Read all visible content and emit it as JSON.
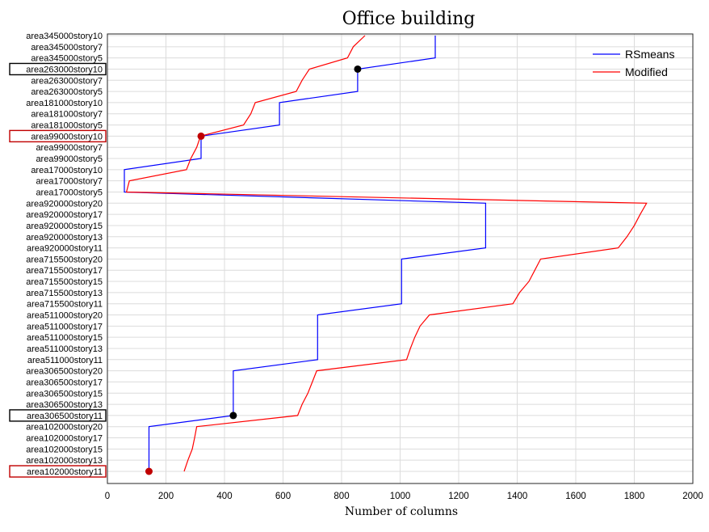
{
  "chart_data": {
    "type": "line",
    "title": "Office building",
    "xlabel": "Number of columns",
    "ylabel": "",
    "xlim": [
      0,
      2000
    ],
    "x_ticks": [
      "0",
      "200",
      "400",
      "600",
      "800",
      "1000",
      "1200",
      "1400",
      "1600",
      "1800",
      "2000"
    ],
    "grid": true,
    "legend_position": "top-right",
    "categories": [
      "area102000story11",
      "area102000story13",
      "area102000story15",
      "area102000story17",
      "area102000story20",
      "area306500story11",
      "area306500story13",
      "area306500story15",
      "area306500story17",
      "area306500story20",
      "area511000story11",
      "area511000story13",
      "area511000story15",
      "area511000story17",
      "area511000story20",
      "area715500story11",
      "area715500story13",
      "area715500story15",
      "area715500story17",
      "area715500story20",
      "area920000story11",
      "area920000story13",
      "area920000story15",
      "area920000story17",
      "area920000story20",
      "area17000story5",
      "area17000story7",
      "area17000story10",
      "area99000story5",
      "area99000story7",
      "area99000story10",
      "area181000story5",
      "area181000story7",
      "area181000story10",
      "area263000story5",
      "area263000story7",
      "area263000story10",
      "area345000story5",
      "area345000story7",
      "area345000story10"
    ],
    "series": [
      {
        "name": "RSmeans",
        "color": "#0000ff",
        "values": [
          142,
          142,
          142,
          142,
          142,
          430,
          430,
          430,
          430,
          430,
          718,
          718,
          718,
          718,
          718,
          1005,
          1005,
          1005,
          1005,
          1005,
          1292,
          1292,
          1292,
          1292,
          1292,
          58,
          58,
          58,
          320,
          320,
          320,
          588,
          588,
          588,
          855,
          855,
          855,
          1120,
          1120,
          1120
        ]
      },
      {
        "name": "Modified",
        "color": "#ff0000",
        "values": [
          262,
          275,
          290,
          298,
          305,
          650,
          665,
          685,
          700,
          715,
          1022,
          1035,
          1050,
          1068,
          1100,
          1385,
          1408,
          1440,
          1460,
          1480,
          1745,
          1775,
          1800,
          1820,
          1842,
          65,
          75,
          270,
          285,
          305,
          318,
          465,
          490,
          505,
          645,
          665,
          690,
          820,
          840,
          880
        ]
      }
    ],
    "highlights": [
      {
        "category": "area102000story11",
        "value": 142,
        "color": "#c00000"
      },
      {
        "category": "area306500story11",
        "value": 430,
        "color": "#000000"
      },
      {
        "category": "area99000story10",
        "value": 320,
        "color": "#c00000"
      },
      {
        "category": "area263000story10",
        "value": 855,
        "color": "#000000"
      }
    ],
    "boxed_labels": [
      {
        "category": "area102000story11",
        "color": "#c00000"
      },
      {
        "category": "area306500story11",
        "color": "#000000"
      },
      {
        "category": "area99000story10",
        "color": "#c00000"
      },
      {
        "category": "area263000story10",
        "color": "#000000"
      }
    ]
  }
}
